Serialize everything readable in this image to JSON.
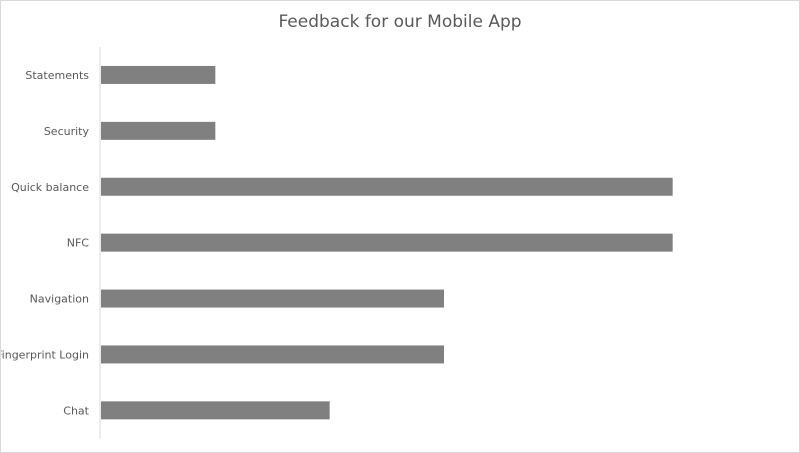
{
  "chart_data": {
    "type": "bar",
    "orientation": "horizontal",
    "title": "Feedback for our Mobile App",
    "categories": [
      "Statements",
      "Security",
      "Quick balance",
      "NFC",
      "Navigation",
      "Fingerprint Login",
      "Chat"
    ],
    "values": [
      1,
      1,
      5,
      5,
      3,
      3,
      2
    ],
    "xlim": [
      0,
      6
    ],
    "xlabel": "",
    "ylabel": "",
    "grid": false,
    "legend": "none",
    "bar_color": "#808080"
  }
}
